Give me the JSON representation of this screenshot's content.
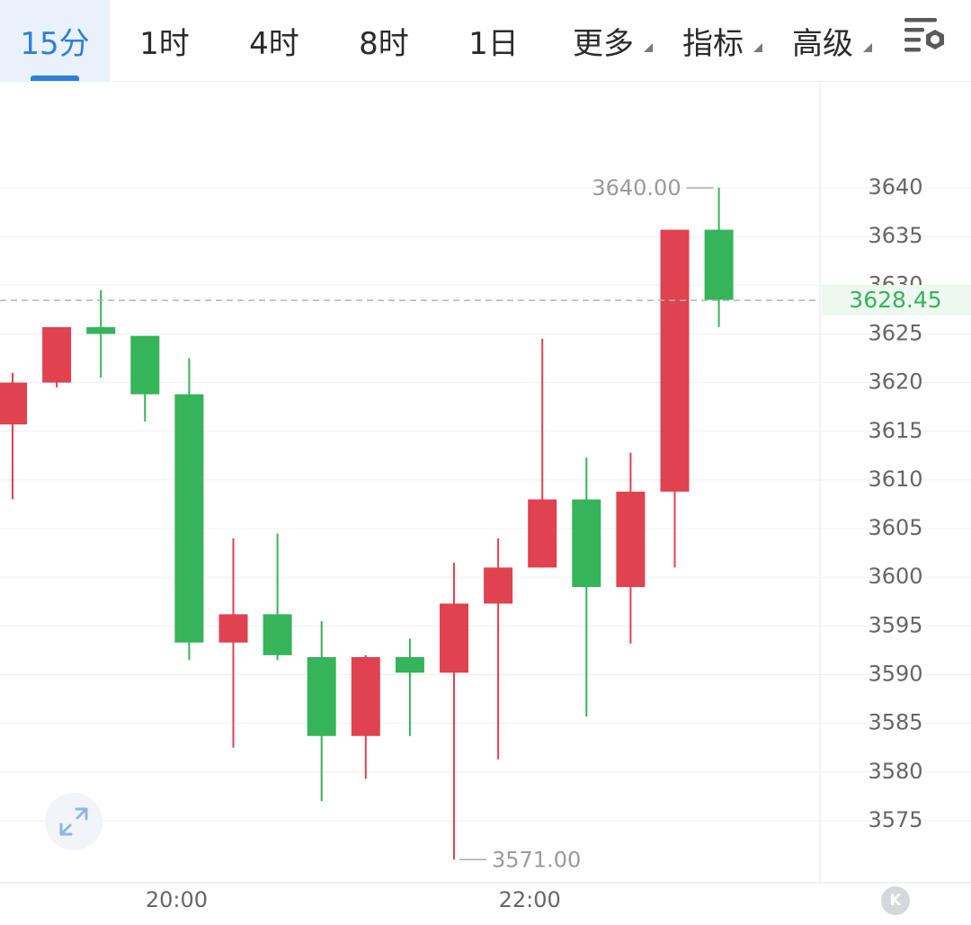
{
  "toolbar": {
    "tabs": [
      {
        "label": "15分",
        "active": true
      },
      {
        "label": "1时"
      },
      {
        "label": "4时"
      },
      {
        "label": "8时"
      },
      {
        "label": "1日"
      },
      {
        "label": "更多",
        "dropdown": true
      },
      {
        "label": "指标",
        "dropdown": true
      },
      {
        "label": "高级",
        "dropdown": true
      }
    ],
    "settings_icon": "chart-settings-icon"
  },
  "colors": {
    "up": "#e0424f",
    "down": "#35b459",
    "accent": "#2e7fd9",
    "grid": "#eef0f3",
    "axis_text": "#666666"
  },
  "chart_data": {
    "type": "candlestick",
    "y_ticks": [
      3640,
      3635,
      3630,
      3625,
      3620,
      3615,
      3610,
      3605,
      3600,
      3595,
      3590,
      3585,
      3580,
      3575
    ],
    "x_ticks": [
      "20:00",
      "22:00"
    ],
    "ylim": [
      3569,
      3648
    ],
    "current_price": {
      "value": 3628.45,
      "label": "3628.45"
    },
    "max_marker": {
      "value": 3640.0,
      "label": "3640.00"
    },
    "min_marker": {
      "value": 3571.0,
      "label": "3571.00"
    },
    "candles": [
      {
        "open": 3615.7,
        "close": 3620.0,
        "high": 3621.0,
        "low": 3608.0,
        "direction": "up"
      },
      {
        "open": 3620.0,
        "close": 3625.7,
        "high": 3625.7,
        "low": 3619.5,
        "direction": "up"
      },
      {
        "open": 3625.7,
        "close": 3625.0,
        "high": 3629.5,
        "low": 3620.5,
        "direction": "down"
      },
      {
        "open": 3624.8,
        "close": 3618.8,
        "high": 3624.8,
        "low": 3616.0,
        "direction": "down"
      },
      {
        "open": 3618.8,
        "close": 3593.3,
        "high": 3622.5,
        "low": 3591.5,
        "direction": "down"
      },
      {
        "open": 3593.3,
        "close": 3596.2,
        "high": 3604.0,
        "low": 3582.5,
        "direction": "up"
      },
      {
        "open": 3596.2,
        "close": 3592.0,
        "high": 3604.5,
        "low": 3591.5,
        "direction": "down"
      },
      {
        "open": 3591.8,
        "close": 3583.7,
        "high": 3595.5,
        "low": 3577.0,
        "direction": "down"
      },
      {
        "open": 3583.7,
        "close": 3591.8,
        "high": 3592.0,
        "low": 3579.3,
        "direction": "up"
      },
      {
        "open": 3591.8,
        "close": 3590.2,
        "high": 3593.7,
        "low": 3583.7,
        "direction": "down"
      },
      {
        "open": 3590.2,
        "close": 3597.3,
        "high": 3601.5,
        "low": 3571.0,
        "direction": "up"
      },
      {
        "open": 3597.3,
        "close": 3601.0,
        "high": 3604.0,
        "low": 3581.3,
        "direction": "up"
      },
      {
        "open": 3601.0,
        "close": 3608.0,
        "high": 3624.5,
        "low": 3601.0,
        "direction": "up"
      },
      {
        "open": 3608.0,
        "close": 3599.0,
        "high": 3612.3,
        "low": 3585.7,
        "direction": "down"
      },
      {
        "open": 3599.0,
        "close": 3608.8,
        "high": 3612.8,
        "low": 3593.2,
        "direction": "up"
      },
      {
        "open": 3608.8,
        "close": 3635.7,
        "high": 3635.7,
        "low": 3601.0,
        "direction": "up"
      },
      {
        "open": 3635.7,
        "close": 3628.5,
        "high": 3640.0,
        "low": 3625.7,
        "direction": "down"
      }
    ]
  }
}
